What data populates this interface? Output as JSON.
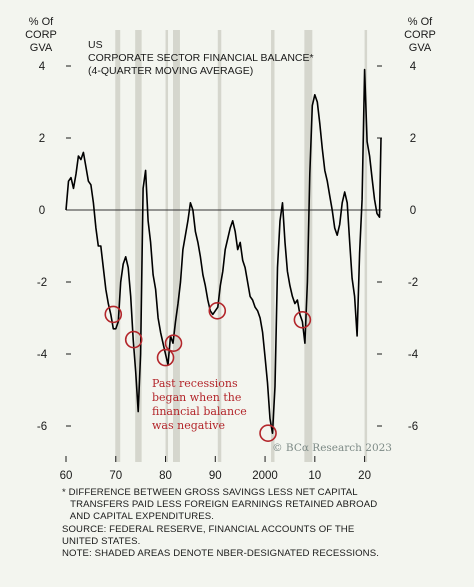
{
  "chart_data": {
    "type": "line",
    "title_lines": [
      "US",
      "CORPORATE SECTOR FINANCIAL BALANCE*",
      "(4-QUARTER MOVING AVERAGE)"
    ],
    "ylabel_left": [
      "% Of",
      "CORP",
      "GVA"
    ],
    "ylabel_right": [
      "% Of",
      "CORP",
      "GVA"
    ],
    "ylim": [
      -7,
      5
    ],
    "xlim": [
      1960,
      2023.5
    ],
    "yticks": [
      4,
      2,
      0,
      -2,
      -4,
      -6
    ],
    "ytick_labels": [
      "4",
      "2",
      "0",
      "-2",
      "-4",
      "-6"
    ],
    "xticks": [
      1960,
      1970,
      1980,
      1990,
      2000,
      2010,
      2020
    ],
    "xtick_labels": [
      "60",
      "70",
      "80",
      "90",
      "2000",
      "10",
      "20"
    ],
    "zero_line": true,
    "recessions": [
      [
        1969.9,
        1970.9
      ],
      [
        1973.9,
        1975.2
      ],
      [
        1980.0,
        1980.5
      ],
      [
        1981.5,
        1982.9
      ],
      [
        1990.5,
        1991.2
      ],
      [
        2001.2,
        2001.9
      ],
      [
        2007.9,
        2009.5
      ],
      [
        2020.0,
        2020.5
      ]
    ],
    "series": [
      {
        "color": "#000000",
        "x": [
          1960.0,
          1960.5,
          1961.0,
          1961.5,
          1962.0,
          1962.5,
          1963.0,
          1963.5,
          1964.0,
          1964.5,
          1965.0,
          1965.5,
          1966.0,
          1966.5,
          1967.0,
          1967.5,
          1968.0,
          1968.5,
          1969.0,
          1969.5,
          1970.0,
          1970.5,
          1971.0,
          1971.5,
          1972.0,
          1972.5,
          1973.0,
          1973.5,
          1974.0,
          1974.5,
          1975.0,
          1975.5,
          1976.0,
          1976.5,
          1977.0,
          1977.5,
          1978.0,
          1978.5,
          1979.0,
          1979.5,
          1980.0,
          1980.5,
          1981.0,
          1981.5,
          1982.0,
          1982.5,
          1983.0,
          1983.5,
          1984.0,
          1984.5,
          1985.0,
          1985.5,
          1986.0,
          1986.5,
          1987.0,
          1987.5,
          1988.0,
          1988.5,
          1989.0,
          1989.5,
          1990.0,
          1990.5,
          1991.0,
          1991.5,
          1992.0,
          1992.5,
          1993.0,
          1993.5,
          1994.0,
          1994.5,
          1995.0,
          1995.5,
          1996.0,
          1996.5,
          1997.0,
          1997.5,
          1998.0,
          1998.5,
          1999.0,
          1999.5,
          2000.0,
          2000.5,
          2001.0,
          2001.5,
          2002.0,
          2002.5,
          2003.0,
          2003.5,
          2004.0,
          2004.5,
          2005.0,
          2005.5,
          2006.0,
          2006.5,
          2007.0,
          2007.5,
          2008.0,
          2008.5,
          2009.0,
          2009.5,
          2010.0,
          2010.5,
          2011.0,
          2011.5,
          2012.0,
          2012.5,
          2013.0,
          2013.5,
          2014.0,
          2014.5,
          2015.0,
          2015.5,
          2016.0,
          2016.5,
          2017.0,
          2017.5,
          2018.0,
          2018.5,
          2019.0,
          2019.5,
          2020.0,
          2020.5,
          2021.0,
          2021.5,
          2022.0,
          2022.5,
          2023.0,
          2023.3
        ],
        "y": [
          0.0,
          0.8,
          0.9,
          0.6,
          1.0,
          1.5,
          1.4,
          1.6,
          1.2,
          0.8,
          0.7,
          0.2,
          -0.5,
          -1.0,
          -1.0,
          -1.6,
          -2.2,
          -2.6,
          -2.9,
          -3.3,
          -3.3,
          -3.1,
          -2.0,
          -1.5,
          -1.3,
          -1.6,
          -2.4,
          -3.6,
          -4.5,
          -5.6,
          -4.0,
          0.6,
          1.1,
          -0.3,
          -0.9,
          -1.8,
          -2.2,
          -3.0,
          -3.4,
          -3.7,
          -4.0,
          -4.3,
          -3.5,
          -3.7,
          -3.1,
          -2.6,
          -2.0,
          -1.1,
          -0.7,
          -0.3,
          0.2,
          0.0,
          -0.6,
          -0.9,
          -1.3,
          -1.8,
          -2.1,
          -2.5,
          -2.8,
          -2.9,
          -2.8,
          -2.7,
          -2.1,
          -1.7,
          -1.1,
          -0.8,
          -0.5,
          -0.3,
          -0.6,
          -1.1,
          -0.9,
          -1.4,
          -1.6,
          -2.0,
          -2.4,
          -2.5,
          -2.7,
          -2.8,
          -3.0,
          -3.4,
          -4.1,
          -4.8,
          -5.8,
          -6.2,
          -4.9,
          -1.6,
          -0.3,
          0.2,
          -0.9,
          -1.7,
          -2.1,
          -2.4,
          -2.6,
          -2.5,
          -2.9,
          -3.1,
          -3.7,
          -2.0,
          1.0,
          2.9,
          3.2,
          3.0,
          2.4,
          1.7,
          1.1,
          0.8,
          0.4,
          0.0,
          -0.5,
          -0.7,
          -0.4,
          0.2,
          0.5,
          0.2,
          -0.9,
          -1.9,
          -2.4,
          -3.5,
          -1.2,
          0.3,
          3.9,
          1.9,
          1.5,
          0.9,
          0.3,
          -0.1,
          -0.2,
          2.0
        ]
      }
    ],
    "highlight_points": [
      {
        "x": 1969.5,
        "y": -2.9
      },
      {
        "x": 1973.6,
        "y": -3.6
      },
      {
        "x": 1980.0,
        "y": -4.1
      },
      {
        "x": 1981.6,
        "y": -3.7
      },
      {
        "x": 1990.4,
        "y": -2.8
      },
      {
        "x": 2000.6,
        "y": -6.2
      },
      {
        "x": 2007.5,
        "y": -3.05
      }
    ],
    "annotation_lines": [
      "Past recessions",
      "began when the",
      "financial balance",
      "was negative"
    ],
    "colors": {
      "background": "#f3f5ef",
      "line": "#000000",
      "recession_band": "#d5d6cd",
      "zero_line": "#333333",
      "highlight": "#b3262b",
      "credit": "#7d8a86"
    }
  },
  "credit": "© BCα Research 2023",
  "footnotes": [
    "* DIFFERENCE BETWEEN GROSS SAVINGS LESS NET CAPITAL",
    "   TRANSFERS PAID LESS FOREIGN EARNINGS RETAINED ABROAD",
    "   AND CAPITAL EXPENDITURES.",
    "SOURCE: FEDERAL RESERVE, FINANCIAL ACCOUNTS OF THE",
    "UNITED STATES.",
    "NOTE: SHADED AREAS DENOTE NBER-DESIGNATED RECESSIONS."
  ]
}
